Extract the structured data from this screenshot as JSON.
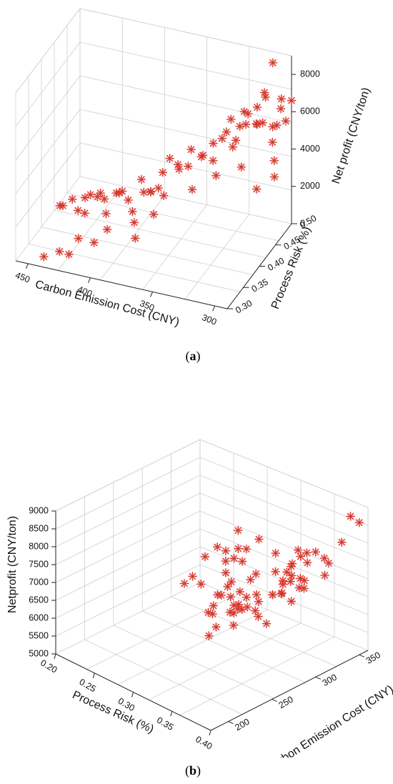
{
  "captions": {
    "a_open": "(",
    "a_letter": "a",
    "a_close": ")",
    "b_open": "(",
    "b_letter": "b",
    "b_close": ")"
  },
  "chart_data": [
    {
      "id": "a",
      "type": "scatter",
      "title": "",
      "marker": "asterisk",
      "color": "#e0302c",
      "zlabel": "Net profit (CNY/ton)",
      "xlabel": "Carbon Emission Cost (CNY)",
      "ylabel": "Process Risk (%)",
      "zticks": [
        "0",
        "2000",
        "4000",
        "6000",
        "8000"
      ],
      "xticks": [
        "450",
        "400",
        "350",
        "300"
      ],
      "yticks": [
        "0.30",
        "0.35",
        "0.40",
        "0.45",
        "0.50"
      ],
      "xlim": [
        290,
        460
      ],
      "ylim": [
        0.3,
        0.5
      ],
      "zlim": [
        0,
        9000
      ],
      "grid": true,
      "points": [
        [
          440,
          0.31,
          300
        ],
        [
          430,
          0.32,
          500
        ],
        [
          425,
          0.33,
          200
        ],
        [
          420,
          0.34,
          900
        ],
        [
          410,
          0.35,
          600
        ],
        [
          440,
          0.36,
          1900
        ],
        [
          435,
          0.35,
          2200
        ],
        [
          430,
          0.36,
          2400
        ],
        [
          428,
          0.37,
          1600
        ],
        [
          425,
          0.38,
          2100
        ],
        [
          420,
          0.36,
          1800
        ],
        [
          418,
          0.37,
          2600
        ],
        [
          415,
          0.38,
          2300
        ],
        [
          412,
          0.39,
          2000
        ],
        [
          410,
          0.37,
          2800
        ],
        [
          408,
          0.38,
          1500
        ],
        [
          405,
          0.4,
          2200
        ],
        [
          402,
          0.36,
          1200
        ],
        [
          400,
          0.39,
          2500
        ],
        [
          398,
          0.41,
          1700
        ],
        [
          395,
          0.38,
          2900
        ],
        [
          392,
          0.4,
          1400
        ],
        [
          390,
          0.42,
          2700
        ],
        [
          388,
          0.39,
          1100
        ],
        [
          385,
          0.43,
          1900
        ],
        [
          382,
          0.37,
          800
        ],
        [
          380,
          0.41,
          2400
        ],
        [
          378,
          0.44,
          2800
        ],
        [
          375,
          0.4,
          1500
        ],
        [
          372,
          0.42,
          2100
        ],
        [
          370,
          0.35,
          3900
        ],
        [
          366,
          0.38,
          3500
        ],
        [
          362,
          0.4,
          4700
        ],
        [
          358,
          0.41,
          4200
        ],
        [
          355,
          0.43,
          3700
        ],
        [
          352,
          0.39,
          4500
        ],
        [
          350,
          0.42,
          4900
        ],
        [
          347,
          0.44,
          4100
        ],
        [
          344,
          0.4,
          3300
        ],
        [
          340,
          0.45,
          4700
        ],
        [
          338,
          0.41,
          5000
        ],
        [
          335,
          0.43,
          4300
        ],
        [
          332,
          0.46,
          5200
        ],
        [
          330,
          0.42,
          3800
        ],
        [
          327,
          0.47,
          4600
        ],
        [
          320,
          0.4,
          6400
        ],
        [
          318,
          0.42,
          7000
        ],
        [
          316,
          0.44,
          6200
        ],
        [
          314,
          0.41,
          5800
        ],
        [
          312,
          0.45,
          6700
        ],
        [
          310,
          0.43,
          7300
        ],
        [
          308,
          0.46,
          6000
        ],
        [
          306,
          0.42,
          6900
        ],
        [
          304,
          0.47,
          7500
        ],
        [
          302,
          0.44,
          6500
        ],
        [
          300,
          0.48,
          5500
        ],
        [
          298,
          0.45,
          7800
        ],
        [
          296,
          0.49,
          6300
        ],
        [
          295,
          0.46,
          5200
        ],
        [
          294,
          0.47,
          5900
        ],
        [
          293,
          0.48,
          7100
        ],
        [
          292,
          0.49,
          5700
        ],
        [
          291,
          0.45,
          4500
        ],
        [
          290,
          0.5,
          6600
        ],
        [
          300,
          0.43,
          3300
        ],
        [
          296,
          0.47,
          3100
        ],
        [
          320,
          0.46,
          3500
        ],
        [
          305,
          0.5,
          8400
        ],
        [
          315,
          0.49,
          6100
        ],
        [
          308,
          0.48,
          5600
        ]
      ]
    },
    {
      "id": "b",
      "type": "scatter",
      "title": "",
      "marker": "asterisk",
      "color": "#e0302c",
      "zlabel": "Netprofit (CNY/ton)",
      "xlabel": "Process Risk (%)",
      "ylabel": "Carbon Emission Cost (CNY)",
      "zticks": [
        "5000",
        "5500",
        "6000",
        "6500",
        "7000",
        "7500",
        "8000",
        "8500",
        "9000"
      ],
      "xticks": [
        "0.20",
        "0.25",
        "0.30",
        "0.35",
        "0.40"
      ],
      "yticks": [
        "200",
        "250",
        "300",
        "350"
      ],
      "xlim": [
        0.2,
        0.4
      ],
      "ylim": [
        180,
        360
      ],
      "zlim": [
        5000,
        9000
      ],
      "grid": true,
      "points": [
        [
          0.22,
          330,
          5700
        ],
        [
          0.21,
          330,
          5400
        ],
        [
          0.24,
          340,
          6600
        ],
        [
          0.25,
          340,
          6300
        ],
        [
          0.24,
          325,
          6500
        ],
        [
          0.26,
          330,
          6800
        ],
        [
          0.27,
          335,
          6900
        ],
        [
          0.27,
          320,
          6400
        ],
        [
          0.28,
          330,
          6700
        ],
        [
          0.29,
          325,
          7200
        ],
        [
          0.26,
          345,
          7200
        ],
        [
          0.25,
          310,
          6000
        ],
        [
          0.27,
          310,
          5900
        ],
        [
          0.29,
          310,
          5800
        ],
        [
          0.3,
          300,
          5800
        ],
        [
          0.31,
          300,
          6000
        ],
        [
          0.3,
          320,
          6500
        ],
        [
          0.28,
          320,
          6900
        ],
        [
          0.29,
          340,
          7300
        ],
        [
          0.31,
          340,
          7100
        ],
        [
          0.32,
          330,
          6800
        ],
        [
          0.33,
          340,
          7000
        ],
        [
          0.34,
          340,
          7300
        ],
        [
          0.35,
          330,
          6900
        ],
        [
          0.32,
          310,
          6200
        ],
        [
          0.33,
          300,
          6000
        ],
        [
          0.34,
          300,
          5900
        ],
        [
          0.29,
          280,
          5300
        ],
        [
          0.36,
          325,
          7000
        ],
        [
          0.36,
          310,
          6600
        ],
        [
          0.36,
          300,
          7300
        ],
        [
          0.37,
          295,
          7700
        ],
        [
          0.38,
          290,
          7600
        ],
        [
          0.38,
          280,
          7400
        ],
        [
          0.37,
          260,
          7500
        ],
        [
          0.36,
          250,
          7600
        ],
        [
          0.35,
          245,
          7700
        ],
        [
          0.36,
          240,
          8000
        ],
        [
          0.37,
          230,
          7800
        ],
        [
          0.38,
          230,
          7700
        ],
        [
          0.38,
          220,
          7600
        ],
        [
          0.39,
          220,
          7800
        ],
        [
          0.39,
          215,
          7400
        ],
        [
          0.38,
          210,
          8200
        ],
        [
          0.37,
          210,
          7800
        ],
        [
          0.39,
          240,
          7500
        ],
        [
          0.38,
          250,
          8300
        ],
        [
          0.39,
          260,
          7700
        ],
        [
          0.39,
          270,
          7600
        ],
        [
          0.38,
          300,
          7300
        ],
        [
          0.39,
          230,
          8000
        ],
        [
          0.38,
          240,
          7500
        ],
        [
          0.38,
          200,
          7800
        ],
        [
          0.38,
          195,
          7900
        ],
        [
          0.39,
          195,
          7600
        ],
        [
          0.39,
          260,
          7700
        ],
        [
          0.37,
          300,
          7800
        ],
        [
          0.36,
          300,
          7200
        ],
        [
          0.35,
          320,
          7100
        ],
        [
          0.37,
          315,
          7000
        ],
        [
          0.39,
          320,
          7500
        ],
        [
          0.4,
          330,
          8400
        ],
        [
          0.4,
          300,
          8500
        ],
        [
          0.4,
          290,
          8600
        ],
        [
          0.4,
          280,
          8800
        ],
        [
          0.4,
          310,
          8200
        ],
        [
          0.4,
          315,
          8000
        ],
        [
          0.4,
          340,
          9000
        ],
        [
          0.4,
          350,
          8700
        ],
        [
          0.39,
          300,
          8100
        ]
      ]
    }
  ]
}
